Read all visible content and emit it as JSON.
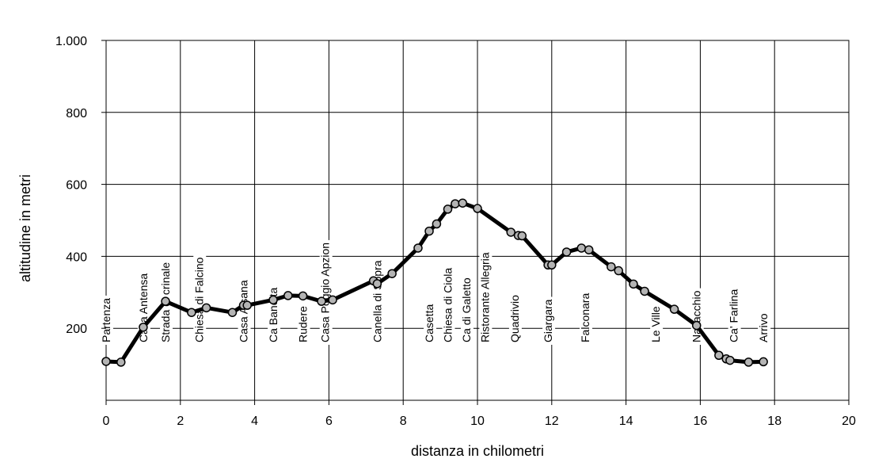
{
  "chart_data": {
    "type": "line",
    "title": "",
    "xlabel": "distanza in chilometri",
    "ylabel": "altitudine  in metri",
    "xlim": [
      0,
      20
    ],
    "ylim": [
      0,
      1000
    ],
    "x_ticks": [
      0,
      2,
      4,
      6,
      8,
      10,
      12,
      14,
      16,
      18,
      20
    ],
    "x_tick_labels": [
      "0",
      "2",
      "4",
      "6",
      "8",
      "10",
      "12",
      "14",
      "16",
      "18",
      "20"
    ],
    "y_ticks": [
      200,
      400,
      600,
      800,
      1000
    ],
    "y_tick_labels": [
      "200",
      "400",
      "600",
      "800",
      "1.000"
    ],
    "grid": true,
    "line_color": "#000000",
    "marker_fill": "#b4b4b4",
    "series": [
      {
        "points": [
          {
            "x": 0.0,
            "y": 108
          },
          {
            "x": 0.4,
            "y": 106
          },
          {
            "x": 1.0,
            "y": 203
          },
          {
            "x": 1.6,
            "y": 275
          },
          {
            "x": 2.3,
            "y": 244
          },
          {
            "x": 2.7,
            "y": 257
          },
          {
            "x": 3.4,
            "y": 244
          },
          {
            "x": 3.7,
            "y": 264
          },
          {
            "x": 3.8,
            "y": 264
          },
          {
            "x": 4.5,
            "y": 279
          },
          {
            "x": 4.9,
            "y": 291
          },
          {
            "x": 5.3,
            "y": 290
          },
          {
            "x": 5.8,
            "y": 275
          },
          {
            "x": 6.1,
            "y": 279
          },
          {
            "x": 7.2,
            "y": 332
          },
          {
            "x": 7.3,
            "y": 324
          },
          {
            "x": 7.7,
            "y": 352
          },
          {
            "x": 8.4,
            "y": 423
          },
          {
            "x": 8.7,
            "y": 470
          },
          {
            "x": 8.9,
            "y": 490
          },
          {
            "x": 9.2,
            "y": 531
          },
          {
            "x": 9.4,
            "y": 546
          },
          {
            "x": 9.6,
            "y": 548
          },
          {
            "x": 10.0,
            "y": 533
          },
          {
            "x": 10.9,
            "y": 467
          },
          {
            "x": 11.1,
            "y": 458
          },
          {
            "x": 11.2,
            "y": 457
          },
          {
            "x": 11.9,
            "y": 376
          },
          {
            "x": 12.0,
            "y": 376
          },
          {
            "x": 12.4,
            "y": 412
          },
          {
            "x": 12.8,
            "y": 423
          },
          {
            "x": 13.0,
            "y": 418
          },
          {
            "x": 13.6,
            "y": 371
          },
          {
            "x": 13.8,
            "y": 360
          },
          {
            "x": 14.2,
            "y": 323
          },
          {
            "x": 14.5,
            "y": 303
          },
          {
            "x": 15.3,
            "y": 253
          },
          {
            "x": 15.9,
            "y": 208
          },
          {
            "x": 16.5,
            "y": 125
          },
          {
            "x": 16.7,
            "y": 115
          },
          {
            "x": 16.8,
            "y": 111
          },
          {
            "x": 17.3,
            "y": 106
          },
          {
            "x": 17.7,
            "y": 107
          }
        ]
      }
    ],
    "annotations": [
      {
        "text": "Partenza",
        "x": 0.0
      },
      {
        "text": "Casa Antensa",
        "x": 1.0
      },
      {
        "text": "Strada di crinale",
        "x": 1.6
      },
      {
        "text": "Chiesa di Falcino",
        "x": 2.5
      },
      {
        "text": "Casa Alsana",
        "x": 3.7
      },
      {
        "text": "Ca Bandita",
        "x": 4.5
      },
      {
        "text": "Rudere",
        "x": 5.3
      },
      {
        "text": "Casa Poggio Apzion",
        "x": 5.9
      },
      {
        "text": "Canella di Sopra",
        "x": 7.3
      },
      {
        "text": "Casetta",
        "x": 8.7
      },
      {
        "text": "Chiesa di Ciola",
        "x": 9.2
      },
      {
        "text": "Ca di Galetto",
        "x": 9.7
      },
      {
        "text": "Ristorante Allegria",
        "x": 10.2
      },
      {
        "text": "Quadrivio",
        "x": 11.0
      },
      {
        "text": "Giargara",
        "x": 11.9
      },
      {
        "text": "Falconara",
        "x": 12.9
      },
      {
        "text": "Le Ville",
        "x": 14.8
      },
      {
        "text": "Navacchio",
        "x": 15.9
      },
      {
        "text": "Ca' Farlina",
        "x": 16.9
      },
      {
        "text": "Arrivo",
        "x": 17.7
      }
    ]
  }
}
